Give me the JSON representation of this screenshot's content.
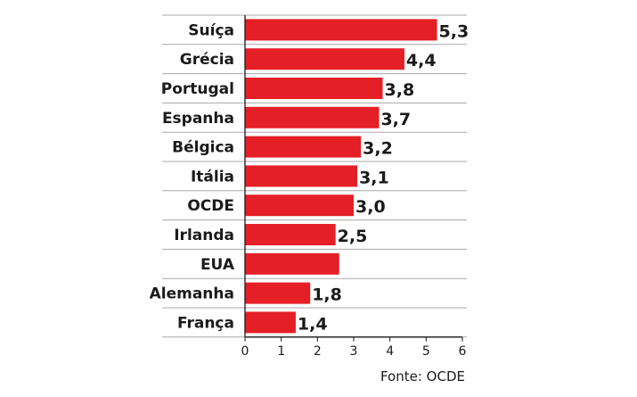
{
  "chart_data": {
    "type": "bar",
    "orientation": "horizontal",
    "categories": [
      "Suíça",
      "Grécia",
      "Portugal",
      "Espanha",
      "Bélgica",
      "Itália",
      "OCDE",
      "Irlanda",
      "EUA",
      "Alemanha",
      "França"
    ],
    "values": [
      5.3,
      4.4,
      3.8,
      3.7,
      3.2,
      3.1,
      3.0,
      2.5,
      2.6,
      1.8,
      1.4
    ],
    "value_labels": [
      "5,3",
      "4,4",
      "3,8",
      "3,7",
      "3,2",
      "3,1",
      "3,0",
      "2,5",
      "",
      "1,8",
      "1,4"
    ],
    "xlim": [
      0,
      6
    ],
    "xticks": [
      "0",
      "1",
      "2",
      "3",
      "4",
      "5",
      "6"
    ],
    "grid": "horizontal row separators",
    "title": "",
    "xlabel": "",
    "ylabel": "",
    "bar_color": "#e41f26",
    "source": "Fonte: OCDE"
  }
}
